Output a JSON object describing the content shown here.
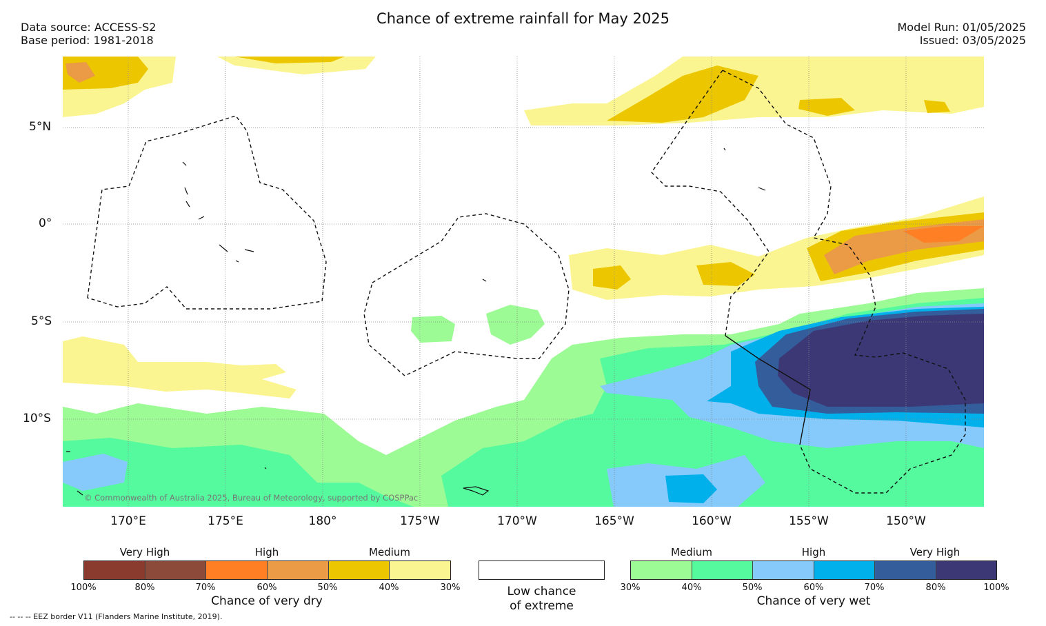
{
  "title": "Chance of extreme rainfall for May 2025",
  "data_source": "Data source: ACCESS-S2",
  "base_period": "Base period: 1981-2018",
  "model_run": "Model Run: 01/05/2025",
  "issued": "Issued: 03/05/2025",
  "credit": "© Commonwealth of Australia 2025, Bureau of Meteorology, supported by COSPPac",
  "eez_note": "--  --  -- EEZ border V11 (Flanders Marine Institute, 2019).",
  "lat_labels": [
    "5°N",
    "0°",
    "5°S",
    "10°S"
  ],
  "lon_labels": [
    "170°E",
    "175°E",
    "180°",
    "175°W",
    "170°W",
    "165°W",
    "160°W",
    "155°W",
    "150°W"
  ],
  "dry_legend": {
    "categories": [
      "Very High",
      "High",
      "Medium"
    ],
    "ticks": [
      "100%",
      "80%",
      "70%",
      "60%",
      "50%",
      "40%",
      "30%"
    ],
    "title": "Chance of very dry",
    "colors": [
      "#8b3a2e",
      "#8b4a3a",
      "#ff7f24",
      "#eb9a45",
      "#ecc700",
      "#fbf591"
    ]
  },
  "low_legend": {
    "line1": "Low chance",
    "line2": "of extreme",
    "color": "#ffffff"
  },
  "wet_legend": {
    "categories": [
      "Medium",
      "High",
      "Very High"
    ],
    "ticks": [
      "30%",
      "40%",
      "50%",
      "60%",
      "70%",
      "80%",
      "100%"
    ],
    "title": "Chance of very wet",
    "colors": [
      "#9cfb94",
      "#55fa9e",
      "#86c9fb",
      "#00b0eb",
      "#345d9c",
      "#3c3876"
    ]
  },
  "colors": {
    "very_dry_medium": "#ecc700",
    "very_dry_light": "#fbf591",
    "dry_high": "#eb9a45",
    "dry_orange": "#ff7f24",
    "wet_medium": "#9cfb94",
    "wet_medium2": "#55fa9e",
    "wet_high": "#86c9fb",
    "wet_high2": "#00b0eb",
    "wet_vhigh": "#345d9c",
    "wet_vhigh2": "#3c3876"
  }
}
